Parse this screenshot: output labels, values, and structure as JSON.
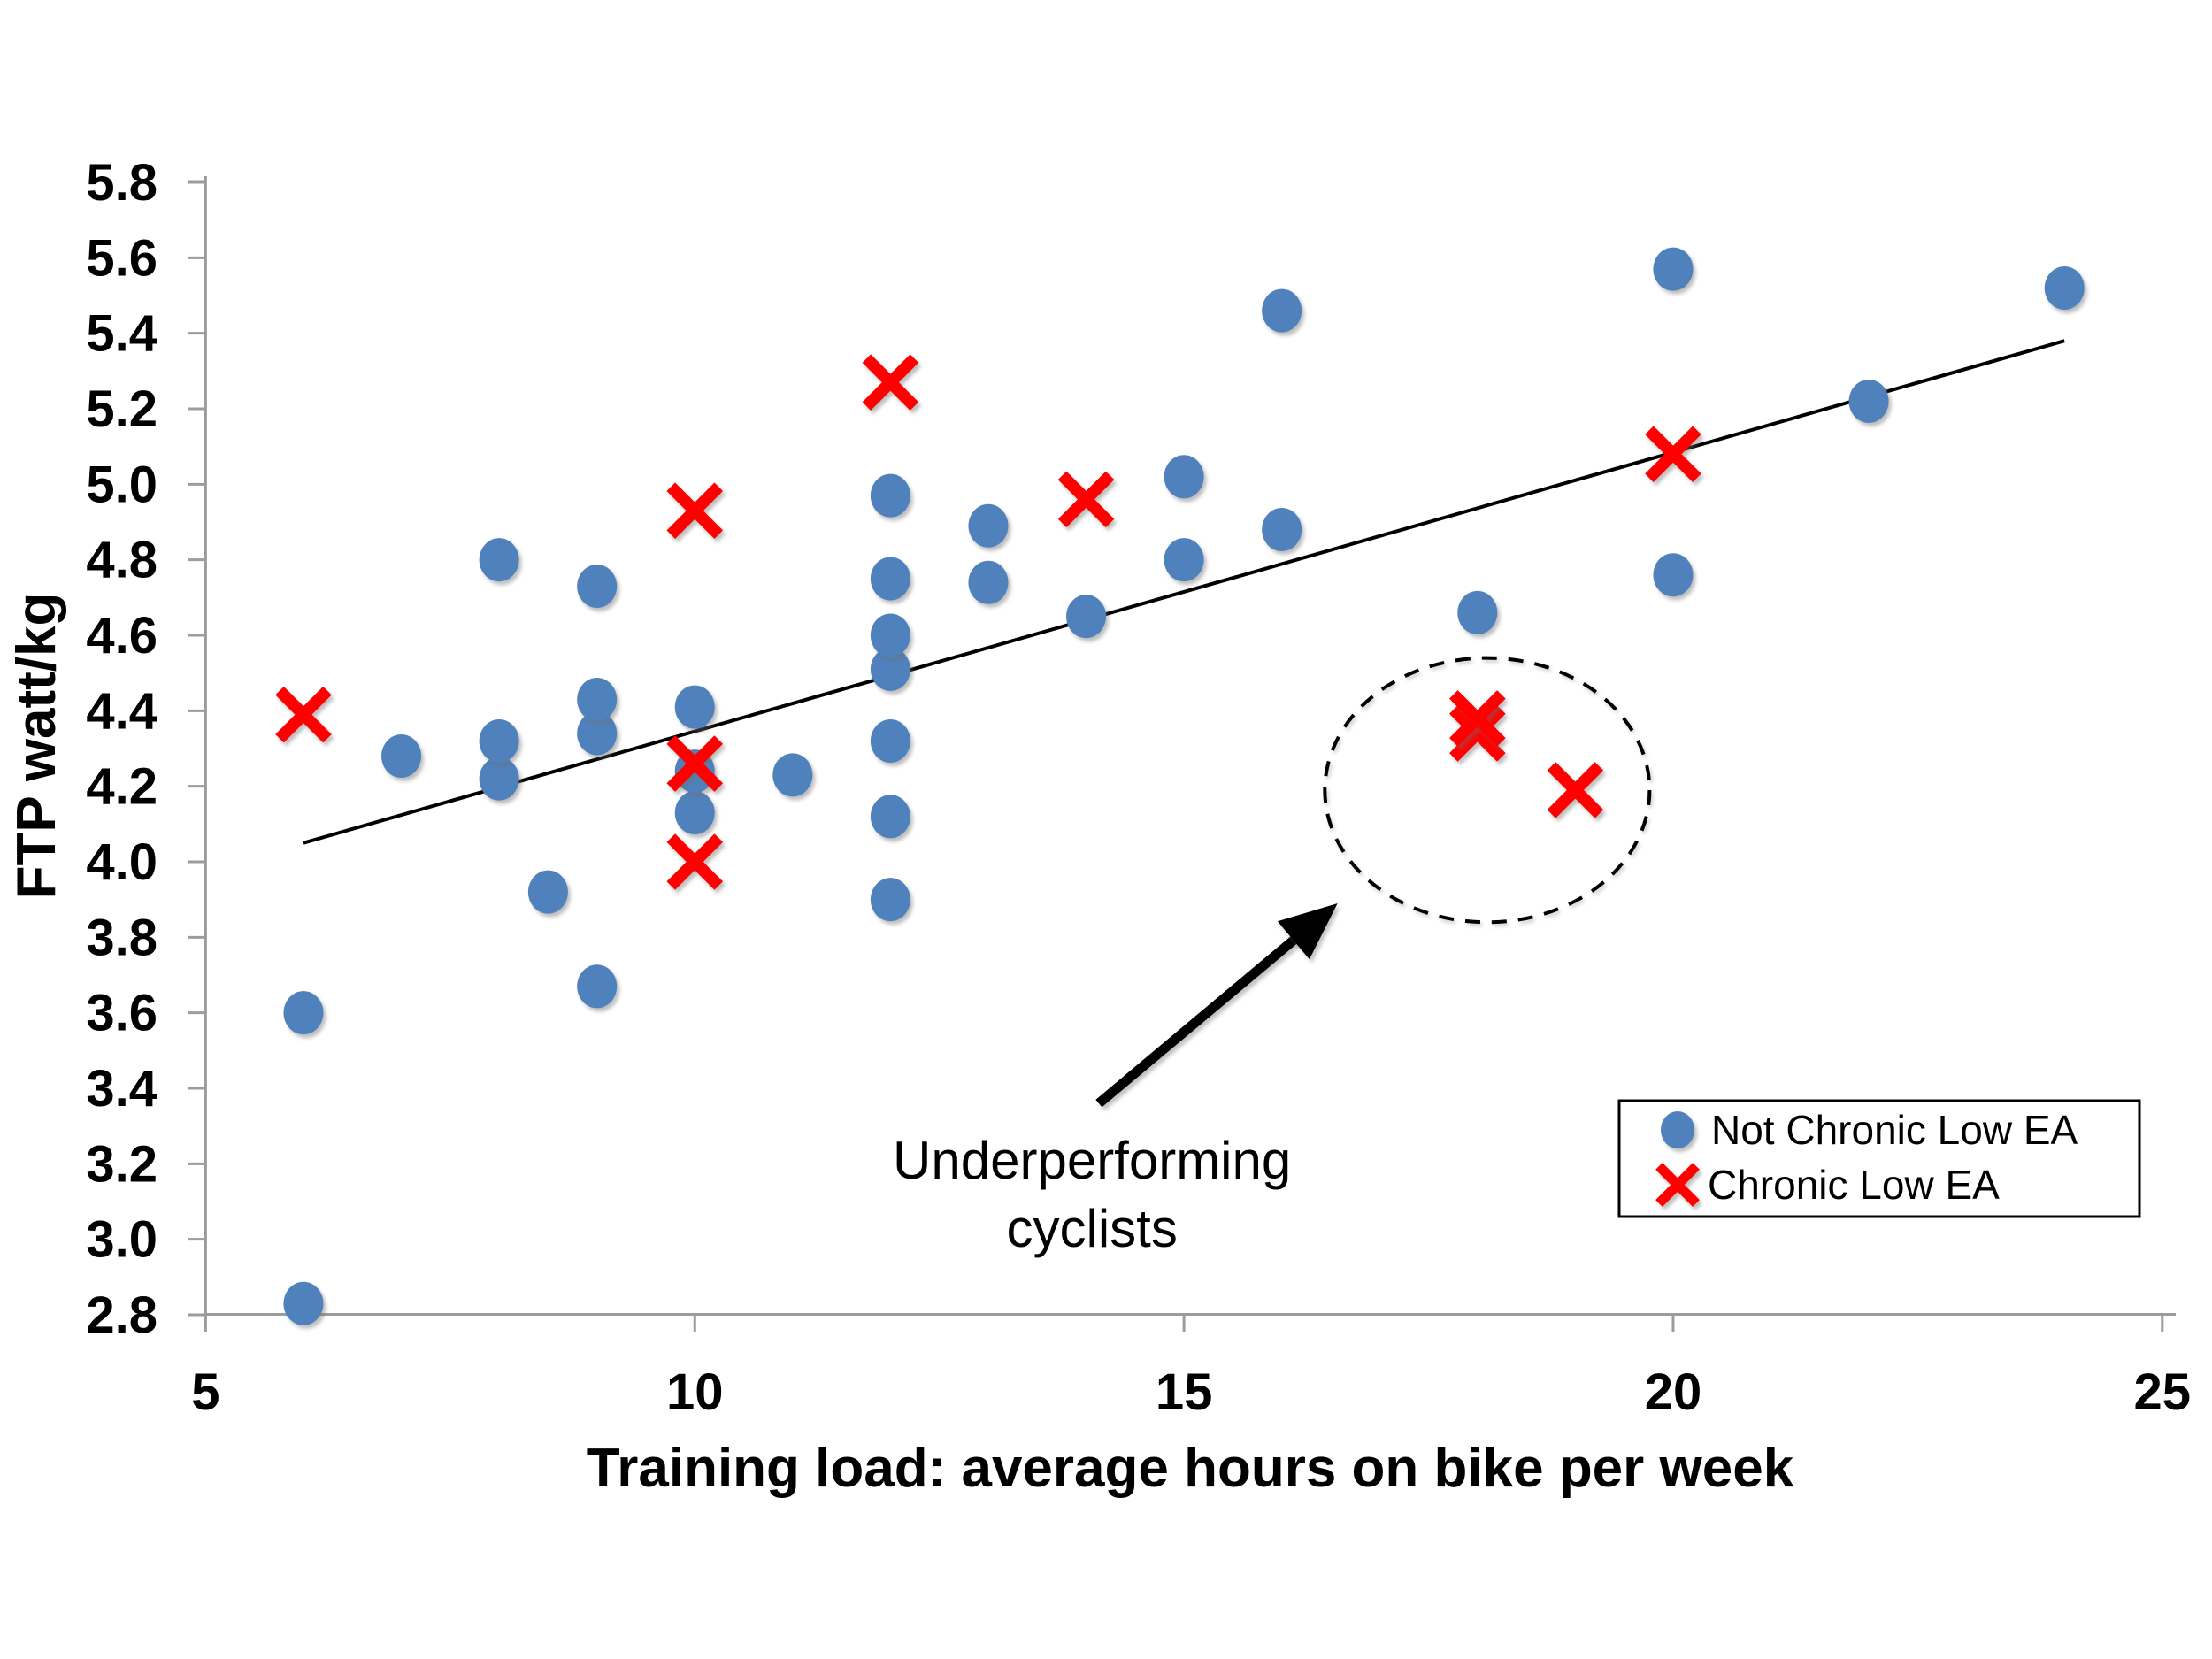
{
  "chart_data": {
    "type": "scatter",
    "title": "",
    "xlabel": "Training load: average hours on bike per week",
    "ylabel": "FTP watt/kg",
    "xlim": [
      5,
      25
    ],
    "ylim": [
      2.8,
      5.8
    ],
    "xticks": [
      5,
      10,
      15,
      20,
      25
    ],
    "yticks": [
      2.8,
      3.0,
      3.2,
      3.4,
      3.6,
      3.8,
      4.0,
      4.2,
      4.4,
      4.6,
      4.8,
      5.0,
      5.2,
      5.4,
      5.6,
      5.8
    ],
    "grid": false,
    "legend_position": "bottom-right",
    "series": [
      {
        "name": "Not Chronic Low EA",
        "marker": "circle",
        "color": "#4F81BD",
        "points": [
          [
            6,
            2.83
          ],
          [
            6,
            3.6
          ],
          [
            7,
            4.28
          ],
          [
            8,
            4.22
          ],
          [
            8,
            4.32
          ],
          [
            8,
            4.8
          ],
          [
            8.5,
            3.92
          ],
          [
            9,
            3.67
          ],
          [
            9,
            4.34
          ],
          [
            9,
            4.43
          ],
          [
            9,
            4.73
          ],
          [
            10,
            4.13
          ],
          [
            10,
            4.24
          ],
          [
            10,
            4.41
          ],
          [
            11,
            4.23
          ],
          [
            12,
            3.9
          ],
          [
            12,
            4.12
          ],
          [
            12,
            4.32
          ],
          [
            12,
            4.51
          ],
          [
            12,
            4.6
          ],
          [
            12,
            4.75
          ],
          [
            12,
            4.97
          ],
          [
            13,
            4.74
          ],
          [
            13,
            4.89
          ],
          [
            14,
            4.65
          ],
          [
            15,
            4.8
          ],
          [
            15,
            5.02
          ],
          [
            16,
            4.88
          ],
          [
            16,
            5.46
          ],
          [
            18,
            4.66
          ],
          [
            20,
            4.76
          ],
          [
            20,
            5.57
          ],
          [
            22,
            5.22
          ],
          [
            24,
            5.52
          ]
        ]
      },
      {
        "name": "Chronic Low EA",
        "marker": "x",
        "color": "#FE0000",
        "points": [
          [
            6,
            4.39
          ],
          [
            10,
            4.0
          ],
          [
            10,
            4.26
          ],
          [
            10,
            4.93
          ],
          [
            12,
            5.27
          ],
          [
            14,
            4.96
          ],
          [
            18,
            4.34
          ],
          [
            18,
            4.38
          ],
          [
            19,
            4.19
          ],
          [
            20,
            5.08
          ]
        ]
      }
    ],
    "trendline": {
      "color": "#000000",
      "points": [
        [
          6.0,
          4.05
        ],
        [
          24.0,
          5.38
        ]
      ]
    },
    "annotation": {
      "text_line1": "Underperforming",
      "text_line2": "cyclists",
      "text_center_x": 14.06,
      "text_line1_y": 3.21,
      "text_line2_y": 3.03,
      "arrow_from": [
        14.13,
        3.36
      ],
      "arrow_to": [
        16.57,
        3.89
      ],
      "ellipse_center": [
        18.1,
        4.19
      ],
      "ellipse_rx": 1.66,
      "ellipse_ry": 0.35
    }
  },
  "legend": {
    "items": [
      {
        "label": "Not Chronic Low EA",
        "marker": "circle",
        "color": "#4F81BD"
      },
      {
        "label": "Chronic Low EA",
        "marker": "x",
        "color": "#FE0000"
      }
    ]
  },
  "colors": {
    "background": "#FFFFFF",
    "axis": "#9C9C9C",
    "text": "#000000",
    "blue_series": "#4F81BD",
    "red_series": "#FE0000"
  }
}
